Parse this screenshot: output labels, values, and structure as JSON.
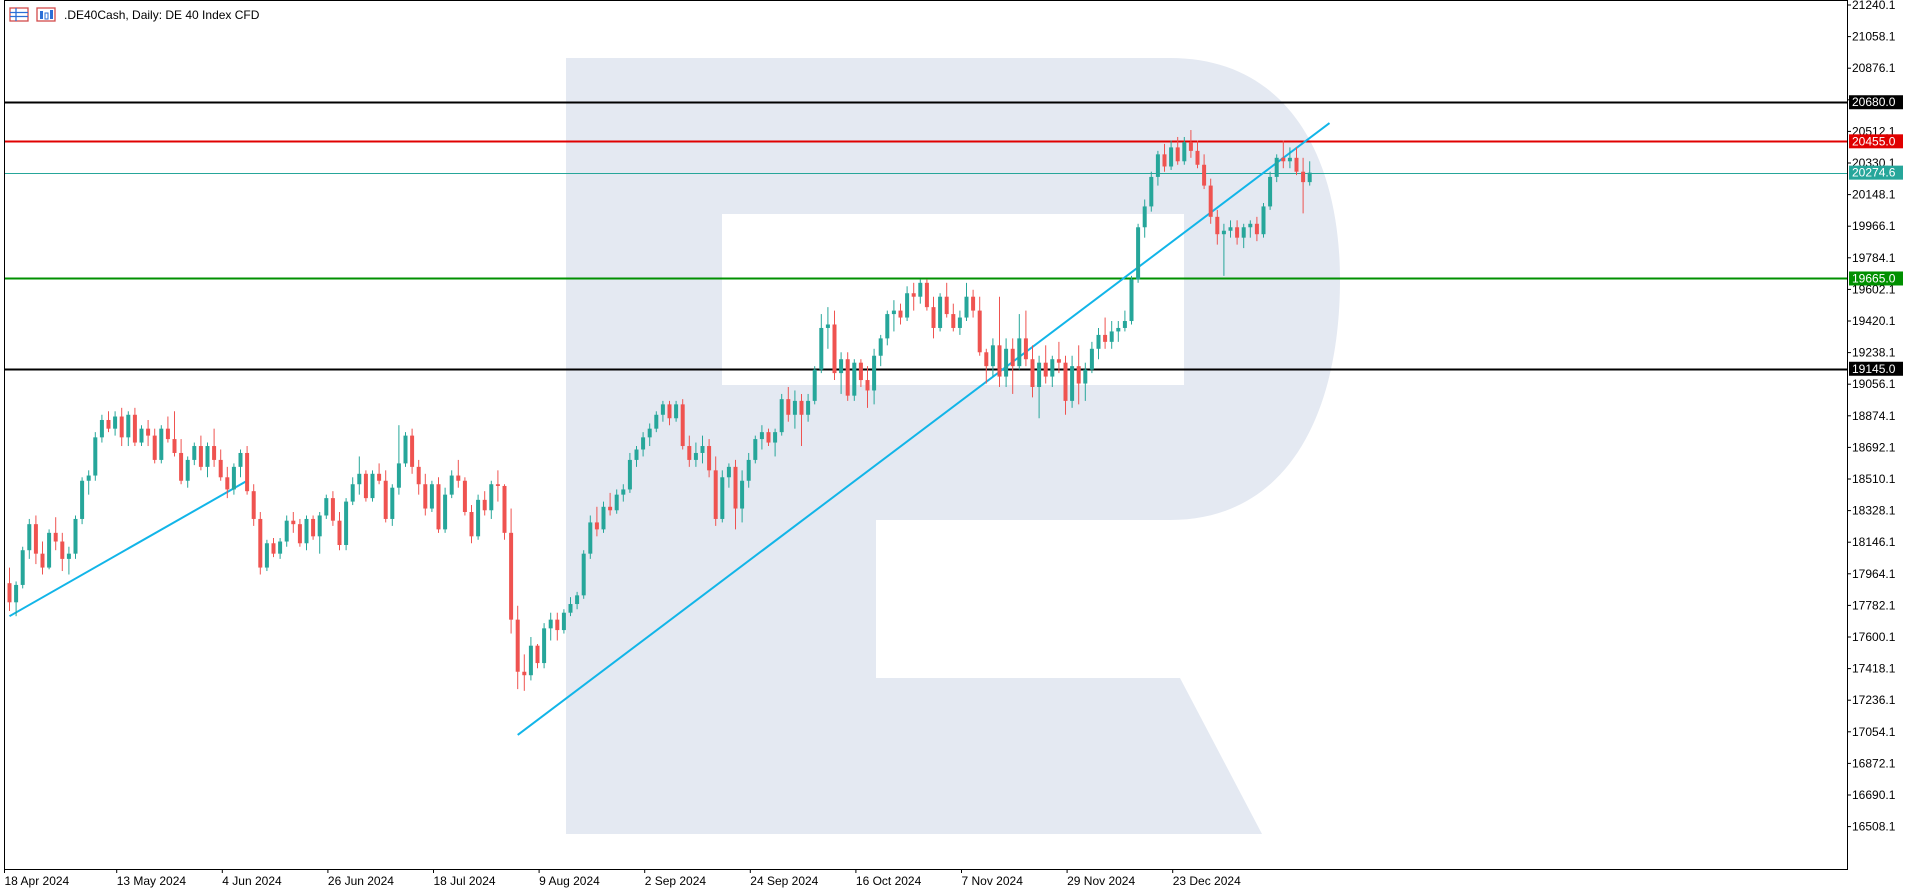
{
  "header": {
    "title": ".DE40Cash, Daily:  DE 40 Index CFD",
    "icons": [
      "grid-table-icon",
      "chart-type-icon"
    ]
  },
  "colors": {
    "background": "#ffffff",
    "frame": "#000000",
    "bull": "#26a69a",
    "bear": "#ef5350",
    "trendline": "#12b5e8",
    "resistance": "#e00000",
    "support": "#009000",
    "level": "#000000",
    "current_price": "#26a69a",
    "watermark": "#e4e9f2"
  },
  "chart_data": {
    "type": "candlestick",
    "title": ".DE40Cash, Daily:  DE 40 Index CFD",
    "ylim": [
      16417,
      21240
    ],
    "y_ticks": [
      "21240.1",
      "21058.1",
      "20876.1",
      "20694.1",
      "20512.1",
      "20330.1",
      "20148.1",
      "19966.1",
      "19784.1",
      "19602.1",
      "19420.1",
      "19238.1",
      "19056.1",
      "18874.1",
      "18692.1",
      "18510.1",
      "18328.1",
      "18146.1",
      "17964.1",
      "17782.1",
      "17600.1",
      "17418.1",
      "17236.1",
      "17054.1",
      "16872.1",
      "16690.1",
      "16508.1"
    ],
    "x_labels": [
      {
        "label": "18 Apr 2024",
        "bar": 0
      },
      {
        "label": "13 May 2024",
        "bar": 17
      },
      {
        "label": "4 Jun 2024",
        "bar": 33
      },
      {
        "label": "26 Jun 2024",
        "bar": 49
      },
      {
        "label": "18 Jul 2024",
        "bar": 65
      },
      {
        "label": "9 Aug 2024",
        "bar": 81
      },
      {
        "label": "2 Sep 2024",
        "bar": 97
      },
      {
        "label": "24 Sep 2024",
        "bar": 113
      },
      {
        "label": "16 Oct 2024",
        "bar": 129
      },
      {
        "label": "7 Nov 2024",
        "bar": 145
      },
      {
        "label": "29 Nov 2024",
        "bar": 161
      },
      {
        "label": "23 Dec 2024",
        "bar": 177
      }
    ],
    "bar_count_visible": 230,
    "candles": [
      [
        17910,
        18000,
        17750,
        17800
      ],
      [
        17800,
        17920,
        17720,
        17900
      ],
      [
        17900,
        18120,
        17880,
        18100
      ],
      [
        18100,
        18280,
        18050,
        18250
      ],
      [
        18250,
        18300,
        18020,
        18080
      ],
      [
        18080,
        18150,
        17960,
        18000
      ],
      [
        18000,
        18220,
        17990,
        18200
      ],
      [
        18200,
        18290,
        18100,
        18150
      ],
      [
        18150,
        18200,
        17980,
        18050
      ],
      [
        18050,
        18120,
        17960,
        18080
      ],
      [
        18080,
        18300,
        18050,
        18280
      ],
      [
        18280,
        18520,
        18250,
        18500
      ],
      [
        18500,
        18560,
        18420,
        18530
      ],
      [
        18530,
        18780,
        18500,
        18750
      ],
      [
        18750,
        18880,
        18720,
        18850
      ],
      [
        18850,
        18900,
        18780,
        18800
      ],
      [
        18800,
        18900,
        18760,
        18870
      ],
      [
        18870,
        18920,
        18700,
        18750
      ],
      [
        18750,
        18900,
        18700,
        18880
      ],
      [
        18880,
        18920,
        18700,
        18720
      ],
      [
        18720,
        18820,
        18700,
        18800
      ],
      [
        18800,
        18850,
        18700,
        18760
      ],
      [
        18760,
        18800,
        18600,
        18620
      ],
      [
        18620,
        18820,
        18600,
        18800
      ],
      [
        18800,
        18870,
        18720,
        18740
      ],
      [
        18740,
        18900,
        18640,
        18660
      ],
      [
        18660,
        18740,
        18480,
        18500
      ],
      [
        18500,
        18640,
        18460,
        18620
      ],
      [
        18620,
        18720,
        18590,
        18700
      ],
      [
        18700,
        18760,
        18560,
        18580
      ],
      [
        18580,
        18720,
        18520,
        18700
      ],
      [
        18700,
        18800,
        18580,
        18620
      ],
      [
        18620,
        18680,
        18500,
        18520
      ],
      [
        18520,
        18580,
        18400,
        18450
      ],
      [
        18450,
        18600,
        18420,
        18580
      ],
      [
        18580,
        18680,
        18520,
        18660
      ],
      [
        18660,
        18700,
        18420,
        18440
      ],
      [
        18440,
        18480,
        18240,
        18280
      ],
      [
        18280,
        18320,
        17960,
        18000
      ],
      [
        18000,
        18160,
        17980,
        18140
      ],
      [
        18140,
        18170,
        18060,
        18080
      ],
      [
        18080,
        18170,
        18050,
        18150
      ],
      [
        18150,
        18300,
        18120,
        18270
      ],
      [
        18270,
        18320,
        18200,
        18250
      ],
      [
        18250,
        18280,
        18120,
        18140
      ],
      [
        18140,
        18300,
        18100,
        18280
      ],
      [
        18280,
        18300,
        18160,
        18180
      ],
      [
        18180,
        18320,
        18080,
        18300
      ],
      [
        18300,
        18420,
        18280,
        18400
      ],
      [
        18400,
        18440,
        18240,
        18270
      ],
      [
        18270,
        18320,
        18100,
        18130
      ],
      [
        18130,
        18400,
        18100,
        18380
      ],
      [
        18380,
        18520,
        18360,
        18480
      ],
      [
        18480,
        18640,
        18420,
        18540
      ],
      [
        18540,
        18560,
        18380,
        18400
      ],
      [
        18400,
        18560,
        18380,
        18540
      ],
      [
        18540,
        18600,
        18480,
        18500
      ],
      [
        18500,
        18560,
        18260,
        18280
      ],
      [
        18280,
        18480,
        18240,
        18460
      ],
      [
        18460,
        18820,
        18420,
        18600
      ],
      [
        18600,
        18780,
        18580,
        18760
      ],
      [
        18760,
        18800,
        18540,
        18580
      ],
      [
        18580,
        18620,
        18420,
        18480
      ],
      [
        18480,
        18540,
        18300,
        18340
      ],
      [
        18340,
        18500,
        18320,
        18480
      ],
      [
        18480,
        18520,
        18200,
        18220
      ],
      [
        18220,
        18460,
        18200,
        18420
      ],
      [
        18420,
        18560,
        18400,
        18530
      ],
      [
        18530,
        18620,
        18460,
        18500
      ],
      [
        18500,
        18520,
        18300,
        18320
      ],
      [
        18320,
        18360,
        18140,
        18180
      ],
      [
        18180,
        18420,
        18160,
        18390
      ],
      [
        18390,
        18440,
        18300,
        18330
      ],
      [
        18330,
        18500,
        18280,
        18480
      ],
      [
        18480,
        18560,
        18380,
        18470
      ],
      [
        18470,
        18480,
        18160,
        18200
      ],
      [
        18200,
        18340,
        17620,
        17700
      ],
      [
        17700,
        17780,
        17300,
        17400
      ],
      [
        17400,
        17500,
        17290,
        17380
      ],
      [
        17380,
        17600,
        17350,
        17550
      ],
      [
        17550,
        17560,
        17420,
        17450
      ],
      [
        17450,
        17680,
        17420,
        17650
      ],
      [
        17650,
        17740,
        17580,
        17700
      ],
      [
        17700,
        17740,
        17580,
        17640
      ],
      [
        17640,
        17760,
        17620,
        17740
      ],
      [
        17740,
        17830,
        17720,
        17790
      ],
      [
        17790,
        17860,
        17760,
        17840
      ],
      [
        17840,
        18100,
        17820,
        18080
      ],
      [
        18080,
        18300,
        18050,
        18260
      ],
      [
        18260,
        18350,
        18180,
        18220
      ],
      [
        18220,
        18380,
        18200,
        18350
      ],
      [
        18350,
        18430,
        18300,
        18330
      ],
      [
        18330,
        18450,
        18310,
        18420
      ],
      [
        18420,
        18480,
        18380,
        18450
      ],
      [
        18450,
        18660,
        18430,
        18620
      ],
      [
        18620,
        18700,
        18580,
        18680
      ],
      [
        18680,
        18780,
        18640,
        18750
      ],
      [
        18750,
        18830,
        18700,
        18800
      ],
      [
        18800,
        18900,
        18780,
        18880
      ],
      [
        18880,
        18960,
        18840,
        18940
      ],
      [
        18940,
        18960,
        18820,
        18860
      ],
      [
        18860,
        18960,
        18840,
        18940
      ],
      [
        18940,
        18970,
        18680,
        18700
      ],
      [
        18700,
        18760,
        18580,
        18620
      ],
      [
        18620,
        18720,
        18580,
        18660
      ],
      [
        18660,
        18760,
        18600,
        18700
      ],
      [
        18700,
        18740,
        18520,
        18560
      ],
      [
        18560,
        18640,
        18240,
        18280
      ],
      [
        18280,
        18560,
        18260,
        18520
      ],
      [
        18520,
        18600,
        18460,
        18580
      ],
      [
        18580,
        18620,
        18220,
        18340
      ],
      [
        18340,
        18560,
        18260,
        18500
      ],
      [
        18500,
        18660,
        18460,
        18620
      ],
      [
        18620,
        18760,
        18600,
        18740
      ],
      [
        18740,
        18820,
        18680,
        18780
      ],
      [
        18780,
        18800,
        18700,
        18720
      ],
      [
        18720,
        18800,
        18640,
        18780
      ],
      [
        18780,
        19000,
        18760,
        18970
      ],
      [
        18970,
        19040,
        18840,
        18880
      ],
      [
        18880,
        19020,
        18800,
        18960
      ],
      [
        18960,
        19000,
        18700,
        18880
      ],
      [
        18880,
        19000,
        18840,
        18960
      ],
      [
        18960,
        19160,
        18940,
        19140
      ],
      [
        19140,
        19460,
        19120,
        19380
      ],
      [
        19380,
        19500,
        19260,
        19400
      ],
      [
        19400,
        19480,
        19080,
        19120
      ],
      [
        19120,
        19240,
        19000,
        19200
      ],
      [
        19200,
        19240,
        18960,
        18990
      ],
      [
        18990,
        19200,
        18960,
        19180
      ],
      [
        19180,
        19200,
        19040,
        19080
      ],
      [
        19080,
        19160,
        18920,
        19020
      ],
      [
        19020,
        19260,
        18940,
        19220
      ],
      [
        19220,
        19340,
        19160,
        19320
      ],
      [
        19320,
        19480,
        19280,
        19460
      ],
      [
        19460,
        19540,
        19360,
        19480
      ],
      [
        19480,
        19520,
        19400,
        19440
      ],
      [
        19440,
        19620,
        19420,
        19580
      ],
      [
        19580,
        19640,
        19480,
        19560
      ],
      [
        19560,
        19660,
        19520,
        19640
      ],
      [
        19640,
        19660,
        19480,
        19500
      ],
      [
        19500,
        19560,
        19320,
        19380
      ],
      [
        19380,
        19580,
        19360,
        19560
      ],
      [
        19560,
        19640,
        19440,
        19460
      ],
      [
        19460,
        19520,
        19360,
        19380
      ],
      [
        19380,
        19480,
        19340,
        19440
      ],
      [
        19440,
        19640,
        19420,
        19560
      ],
      [
        19560,
        19600,
        19440,
        19480
      ],
      [
        19480,
        19560,
        19220,
        19240
      ],
      [
        19240,
        19260,
        19060,
        19160
      ],
      [
        19160,
        19320,
        19100,
        19280
      ],
      [
        19280,
        19560,
        19040,
        19100
      ],
      [
        19100,
        19320,
        19040,
        19260
      ],
      [
        19260,
        19320,
        19000,
        19160
      ],
      [
        19160,
        19460,
        19140,
        19320
      ],
      [
        19320,
        19480,
        19160,
        19200
      ],
      [
        19200,
        19280,
        18980,
        19040
      ],
      [
        19040,
        19220,
        18860,
        19180
      ],
      [
        19180,
        19280,
        19060,
        19100
      ],
      [
        19100,
        19220,
        19040,
        19200
      ],
      [
        19200,
        19300,
        19120,
        19180
      ],
      [
        19180,
        19220,
        18880,
        18960
      ],
      [
        18960,
        19220,
        18920,
        19160
      ],
      [
        19160,
        19280,
        18940,
        19060
      ],
      [
        19060,
        19180,
        18960,
        19140
      ],
      [
        19140,
        19300,
        19120,
        19260
      ],
      [
        19260,
        19380,
        19200,
        19340
      ],
      [
        19340,
        19440,
        19260,
        19300
      ],
      [
        19300,
        19420,
        19260,
        19360
      ],
      [
        19360,
        19420,
        19300,
        19380
      ],
      [
        19380,
        19480,
        19360,
        19420
      ],
      [
        19420,
        19680,
        19400,
        19660
      ],
      [
        19660,
        19980,
        19640,
        19960
      ],
      [
        19960,
        20120,
        19900,
        20080
      ],
      [
        20080,
        20280,
        20050,
        20250
      ],
      [
        20250,
        20400,
        20200,
        20380
      ],
      [
        20380,
        20440,
        20280,
        20310
      ],
      [
        20310,
        20460,
        20290,
        20420
      ],
      [
        20420,
        20480,
        20320,
        20340
      ],
      [
        20340,
        20480,
        20320,
        20450
      ],
      [
        20450,
        20520,
        20360,
        20400
      ],
      [
        20400,
        20460,
        20300,
        20320
      ],
      [
        20320,
        20380,
        20180,
        20200
      ],
      [
        20200,
        20240,
        19980,
        20020
      ],
      [
        20020,
        20060,
        19860,
        19920
      ],
      [
        19920,
        19980,
        19680,
        19940
      ],
      [
        19940,
        20000,
        19900,
        19960
      ],
      [
        19960,
        20000,
        19860,
        19900
      ],
      [
        19900,
        19980,
        19840,
        19960
      ],
      [
        19960,
        20000,
        19900,
        19980
      ],
      [
        19980,
        20020,
        19880,
        19920
      ],
      [
        19920,
        20100,
        19900,
        20080
      ],
      [
        20080,
        20280,
        20060,
        20250
      ],
      [
        20250,
        20380,
        20220,
        20360
      ],
      [
        20360,
        20460,
        20300,
        20340
      ],
      [
        20340,
        20420,
        20300,
        20360
      ],
      [
        20360,
        20420,
        20260,
        20280
      ],
      [
        20280,
        20360,
        20040,
        20220
      ],
      [
        20220,
        20340,
        20200,
        20274.6
      ]
    ],
    "lines": {
      "horizontal": [
        {
          "name": "level-20680",
          "price": 20680.0,
          "label": "20680.0",
          "color": "#000000",
          "width": 2
        },
        {
          "name": "resistance-20455",
          "price": 20455.0,
          "label": "20455.0",
          "color": "#e00000",
          "width": 2
        },
        {
          "name": "current-20274",
          "price": 20274.6,
          "label": "20274.6",
          "color": "#26a69a",
          "width": 1
        },
        {
          "name": "support-19665",
          "price": 19665.0,
          "label": "19665.0",
          "color": "#009000",
          "width": 2
        },
        {
          "name": "level-19145",
          "price": 19145.0,
          "label": "19145.0",
          "color": "#000000",
          "width": 2
        }
      ],
      "trendlines": [
        {
          "name": "trendline-apr-jun",
          "from": {
            "bar": 0,
            "price": 17720
          },
          "to": {
            "bar": 36,
            "price": 18500
          },
          "color": "#12b5e8"
        },
        {
          "name": "trendline-aug-jan",
          "from": {
            "bar": 77,
            "price": 17036
          },
          "to": {
            "bar": 200,
            "price": 20560
          },
          "color": "#12b5e8"
        }
      ]
    }
  }
}
